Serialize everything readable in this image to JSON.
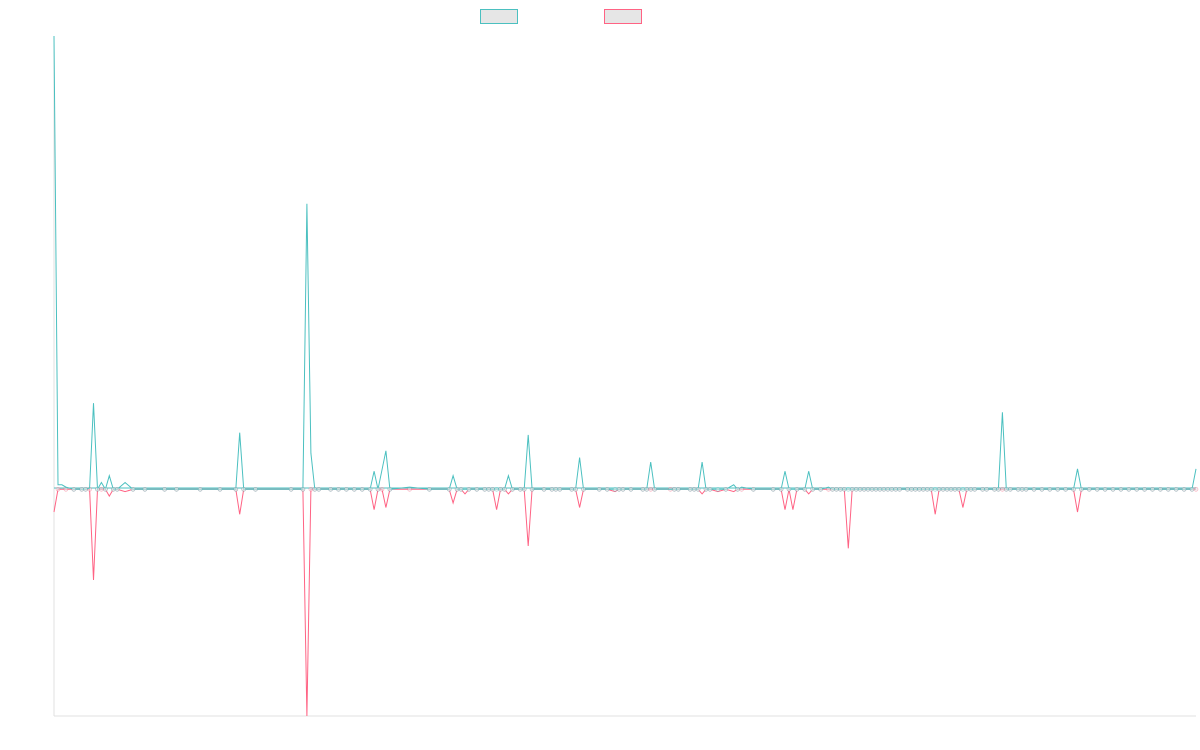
{
  "chart_data": {
    "type": "line",
    "title": "",
    "xlabel": "",
    "ylabel": "",
    "grid": false,
    "legend_position": "top-center",
    "ylim": [
      -100,
      200
    ],
    "x_count": 290,
    "series": [
      {
        "color": "#4bc0c0",
        "fill": "#e6e6e6",
        "points": [
          [
            0,
            200
          ],
          [
            1,
            2
          ],
          [
            2,
            2
          ],
          [
            3,
            1
          ],
          [
            5,
            0
          ],
          [
            7,
            0
          ],
          [
            8,
            0
          ],
          [
            9,
            0.6
          ],
          [
            10,
            38
          ],
          [
            11,
            0
          ],
          [
            12,
            3
          ],
          [
            13,
            0
          ],
          [
            14,
            6
          ],
          [
            15,
            0
          ],
          [
            16,
            0
          ],
          [
            18,
            3
          ],
          [
            20,
            0
          ],
          [
            23,
            0
          ],
          [
            28,
            0
          ],
          [
            31,
            0
          ],
          [
            37,
            0
          ],
          [
            42,
            0
          ],
          [
            46,
            0
          ],
          [
            47,
            25
          ],
          [
            48,
            0
          ],
          [
            51,
            0
          ],
          [
            60,
            0
          ],
          [
            63,
            0
          ],
          [
            64,
            126
          ],
          [
            65,
            16
          ],
          [
            66,
            0
          ],
          [
            67,
            0
          ],
          [
            70,
            0
          ],
          [
            72,
            0
          ],
          [
            74,
            0
          ],
          [
            76,
            0
          ],
          [
            78,
            0
          ],
          [
            80,
            0
          ],
          [
            81,
            8
          ],
          [
            82,
            0
          ],
          [
            84,
            17
          ],
          [
            85,
            0
          ],
          [
            90,
            1
          ],
          [
            95,
            0
          ],
          [
            100,
            0
          ],
          [
            101,
            6
          ],
          [
            102,
            0
          ],
          [
            103,
            0
          ],
          [
            105,
            0
          ],
          [
            107,
            0
          ],
          [
            109,
            0
          ],
          [
            110,
            0
          ],
          [
            111,
            0
          ],
          [
            112,
            0
          ],
          [
            113,
            0
          ],
          [
            114,
            0
          ],
          [
            115,
            6
          ],
          [
            116,
            0
          ],
          [
            118,
            0
          ],
          [
            119,
            0
          ],
          [
            120,
            24
          ],
          [
            121,
            0
          ],
          [
            124,
            0
          ],
          [
            126,
            0
          ],
          [
            127,
            0
          ],
          [
            128,
            0
          ],
          [
            131,
            0
          ],
          [
            132,
            0
          ],
          [
            133,
            14
          ],
          [
            134,
            0
          ],
          [
            138,
            0
          ],
          [
            140,
            0
          ],
          [
            142,
            0
          ],
          [
            143,
            0
          ],
          [
            144,
            0
          ],
          [
            146,
            0
          ],
          [
            149,
            0
          ],
          [
            150,
            0
          ],
          [
            151,
            12
          ],
          [
            152,
            0
          ],
          [
            157,
            0
          ],
          [
            158,
            0
          ],
          [
            161,
            0
          ],
          [
            162,
            0
          ],
          [
            163,
            0
          ],
          [
            164,
            12
          ],
          [
            165,
            0
          ],
          [
            166,
            0
          ],
          [
            168,
            0
          ],
          [
            170,
            0
          ],
          [
            172,
            2
          ],
          [
            173,
            0
          ],
          [
            174,
            1
          ],
          [
            177,
            0
          ],
          [
            182,
            0
          ],
          [
            184,
            0
          ],
          [
            185,
            8
          ],
          [
            186,
            0
          ],
          [
            188,
            0
          ],
          [
            190,
            0
          ],
          [
            191,
            8
          ],
          [
            192,
            0
          ],
          [
            194,
            0
          ],
          [
            196,
            1
          ],
          [
            197,
            0
          ],
          [
            198,
            0
          ],
          [
            199,
            0
          ],
          [
            200,
            0
          ],
          [
            201,
            0
          ],
          [
            202,
            0
          ],
          [
            203,
            0
          ],
          [
            204,
            0
          ],
          [
            205,
            0
          ],
          [
            206,
            0
          ],
          [
            207,
            0
          ],
          [
            208,
            0
          ],
          [
            209,
            0
          ],
          [
            210,
            0
          ],
          [
            211,
            0
          ],
          [
            212,
            0
          ],
          [
            213,
            0
          ],
          [
            214,
            0
          ],
          [
            216,
            0
          ],
          [
            217,
            0
          ],
          [
            218,
            0
          ],
          [
            219,
            0
          ],
          [
            220,
            0
          ],
          [
            221,
            0
          ],
          [
            222,
            0
          ],
          [
            223,
            0
          ],
          [
            224,
            0
          ],
          [
            225,
            0
          ],
          [
            226,
            0
          ],
          [
            227,
            0
          ],
          [
            228,
            0
          ],
          [
            229,
            0
          ],
          [
            230,
            0
          ],
          [
            231,
            0
          ],
          [
            232,
            0
          ],
          [
            233,
            0
          ],
          [
            235,
            0
          ],
          [
            236,
            0
          ],
          [
            238,
            0
          ],
          [
            239,
            0
          ],
          [
            240,
            34
          ],
          [
            241,
            0
          ],
          [
            242,
            0
          ],
          [
            244,
            0
          ],
          [
            245,
            0
          ],
          [
            246,
            0
          ],
          [
            248,
            0
          ],
          [
            250,
            0
          ],
          [
            252,
            0
          ],
          [
            254,
            0
          ],
          [
            256,
            0
          ],
          [
            258,
            0
          ],
          [
            259,
            9
          ],
          [
            260,
            0
          ],
          [
            262,
            0
          ],
          [
            264,
            0
          ],
          [
            266,
            0
          ],
          [
            268,
            0
          ],
          [
            270,
            0
          ],
          [
            272,
            0
          ],
          [
            274,
            0
          ],
          [
            276,
            0
          ],
          [
            278,
            0
          ],
          [
            280,
            0
          ],
          [
            282,
            0
          ],
          [
            284,
            0
          ],
          [
            286,
            0
          ],
          [
            288,
            0
          ],
          [
            289,
            9
          ]
        ]
      },
      {
        "color": "#ff6384",
        "fill": "#e6e6e6",
        "points": [
          [
            0,
            -10
          ],
          [
            1,
            0
          ],
          [
            3,
            0
          ],
          [
            5,
            0
          ],
          [
            7,
            0
          ],
          [
            8,
            0
          ],
          [
            9,
            0
          ],
          [
            10,
            -40
          ],
          [
            11,
            0
          ],
          [
            12,
            0
          ],
          [
            13,
            0
          ],
          [
            14,
            -3
          ],
          [
            15,
            0
          ],
          [
            16,
            0
          ],
          [
            18,
            -1
          ],
          [
            20,
            0
          ],
          [
            23,
            0
          ],
          [
            28,
            0
          ],
          [
            31,
            0
          ],
          [
            37,
            0
          ],
          [
            42,
            0
          ],
          [
            46,
            0
          ],
          [
            47,
            -11
          ],
          [
            48,
            0
          ],
          [
            51,
            0
          ],
          [
            60,
            0
          ],
          [
            63,
            0
          ],
          [
            64,
            -100
          ],
          [
            65,
            0
          ],
          [
            66,
            0
          ],
          [
            67,
            0
          ],
          [
            70,
            0
          ],
          [
            72,
            0
          ],
          [
            74,
            0
          ],
          [
            76,
            0
          ],
          [
            78,
            0
          ],
          [
            80,
            0
          ],
          [
            81,
            -9
          ],
          [
            82,
            0
          ],
          [
            83,
            0
          ],
          [
            84,
            -8
          ],
          [
            85,
            0
          ],
          [
            90,
            0
          ],
          [
            95,
            0
          ],
          [
            100,
            0
          ],
          [
            101,
            -6
          ],
          [
            102,
            0
          ],
          [
            103,
            0
          ],
          [
            104,
            -2
          ],
          [
            105,
            0
          ],
          [
            107,
            0
          ],
          [
            109,
            0
          ],
          [
            110,
            0
          ],
          [
            111,
            0
          ],
          [
            112,
            -9
          ],
          [
            113,
            0
          ],
          [
            114,
            0
          ],
          [
            115,
            -2
          ],
          [
            116,
            0
          ],
          [
            118,
            0
          ],
          [
            119,
            0
          ],
          [
            120,
            -25
          ],
          [
            121,
            0
          ],
          [
            124,
            0
          ],
          [
            126,
            0
          ],
          [
            127,
            0
          ],
          [
            128,
            0
          ],
          [
            131,
            0
          ],
          [
            132,
            0
          ],
          [
            133,
            -8
          ],
          [
            134,
            0
          ],
          [
            138,
            0
          ],
          [
            140,
            0
          ],
          [
            142,
            -1
          ],
          [
            143,
            0
          ],
          [
            144,
            0
          ],
          [
            146,
            0
          ],
          [
            149,
            0
          ],
          [
            150,
            0
          ],
          [
            151,
            0
          ],
          [
            152,
            0
          ],
          [
            156,
            0
          ],
          [
            157,
            0
          ],
          [
            158,
            0
          ],
          [
            161,
            0
          ],
          [
            162,
            0
          ],
          [
            163,
            0
          ],
          [
            164,
            -2
          ],
          [
            165,
            0
          ],
          [
            166,
            0
          ],
          [
            168,
            -1
          ],
          [
            170,
            0
          ],
          [
            172,
            -1
          ],
          [
            173,
            0
          ],
          [
            174,
            0
          ],
          [
            177,
            0
          ],
          [
            182,
            0
          ],
          [
            184,
            0
          ],
          [
            185,
            -9
          ],
          [
            186,
            0
          ],
          [
            187,
            -9
          ],
          [
            188,
            0
          ],
          [
            190,
            0
          ],
          [
            191,
            -2
          ],
          [
            192,
            0
          ],
          [
            194,
            0
          ],
          [
            196,
            0
          ],
          [
            197,
            0
          ],
          [
            198,
            0
          ],
          [
            199,
            0
          ],
          [
            200,
            0
          ],
          [
            201,
            -26
          ],
          [
            202,
            0
          ],
          [
            203,
            0
          ],
          [
            204,
            0
          ],
          [
            205,
            0
          ],
          [
            206,
            0
          ],
          [
            207,
            0
          ],
          [
            208,
            0
          ],
          [
            209,
            0
          ],
          [
            210,
            0
          ],
          [
            211,
            0
          ],
          [
            212,
            0
          ],
          [
            213,
            0
          ],
          [
            214,
            0
          ],
          [
            216,
            0
          ],
          [
            217,
            0
          ],
          [
            218,
            0
          ],
          [
            219,
            0
          ],
          [
            220,
            0
          ],
          [
            221,
            0
          ],
          [
            222,
            0
          ],
          [
            223,
            -11
          ],
          [
            224,
            0
          ],
          [
            225,
            0
          ],
          [
            226,
            0
          ],
          [
            227,
            0
          ],
          [
            228,
            0
          ],
          [
            229,
            0
          ],
          [
            230,
            -8
          ],
          [
            231,
            0
          ],
          [
            232,
            0
          ],
          [
            233,
            0
          ],
          [
            235,
            0
          ],
          [
            236,
            0
          ],
          [
            238,
            0
          ],
          [
            239,
            0
          ],
          [
            240,
            0
          ],
          [
            241,
            0
          ],
          [
            242,
            0
          ],
          [
            244,
            0
          ],
          [
            245,
            0
          ],
          [
            246,
            0
          ],
          [
            248,
            0
          ],
          [
            250,
            0
          ],
          [
            252,
            0
          ],
          [
            254,
            0
          ],
          [
            256,
            0
          ],
          [
            258,
            0
          ],
          [
            259,
            -10
          ],
          [
            260,
            0
          ],
          [
            262,
            0
          ],
          [
            264,
            0
          ],
          [
            266,
            0
          ],
          [
            268,
            0
          ],
          [
            270,
            0
          ],
          [
            272,
            0
          ],
          [
            274,
            0
          ],
          [
            276,
            0
          ],
          [
            278,
            0
          ],
          [
            280,
            0
          ],
          [
            282,
            0
          ],
          [
            284,
            0
          ],
          [
            286,
            0
          ],
          [
            288,
            0
          ],
          [
            289,
            0
          ]
        ]
      }
    ]
  }
}
